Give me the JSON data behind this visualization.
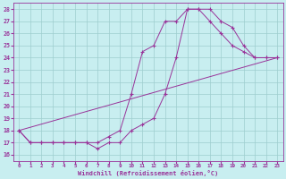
{
  "xlabel": "Windchill (Refroidissement éolien,°C)",
  "background_color": "#c8eef0",
  "grid_color": "#9ecece",
  "line_color": "#993399",
  "xlim_min": -0.5,
  "xlim_max": 23.5,
  "ylim_min": 15.5,
  "ylim_max": 28.5,
  "xticks": [
    0,
    1,
    2,
    3,
    4,
    5,
    6,
    7,
    8,
    9,
    10,
    11,
    12,
    13,
    14,
    15,
    16,
    17,
    18,
    19,
    20,
    21,
    22,
    23
  ],
  "yticks": [
    16,
    17,
    18,
    19,
    20,
    21,
    22,
    23,
    24,
    25,
    26,
    27,
    28
  ],
  "series1_x": [
    0,
    1,
    2,
    3,
    4,
    5,
    6,
    7,
    8,
    9,
    10,
    11,
    12,
    13,
    14,
    15,
    16,
    17,
    18,
    19,
    20,
    21,
    22,
    23
  ],
  "series1_y": [
    18,
    17,
    17,
    17,
    17,
    17,
    17,
    16.5,
    17,
    17,
    18,
    18.5,
    19,
    21,
    24,
    28,
    28,
    28,
    27,
    26.5,
    25,
    24,
    24,
    24
  ],
  "series2_x": [
    0,
    1,
    2,
    3,
    4,
    5,
    6,
    7,
    8,
    9,
    10,
    11,
    12,
    13,
    14,
    15,
    16,
    17,
    18,
    19,
    20,
    21,
    22,
    23
  ],
  "series2_y": [
    18,
    17,
    17,
    17,
    17,
    17,
    17,
    17,
    17.5,
    18,
    21,
    24.5,
    25,
    27,
    27,
    28,
    28,
    27,
    26,
    25,
    24.5,
    24,
    24,
    24
  ],
  "series3_x": [
    0,
    23
  ],
  "series3_y": [
    18,
    24
  ]
}
